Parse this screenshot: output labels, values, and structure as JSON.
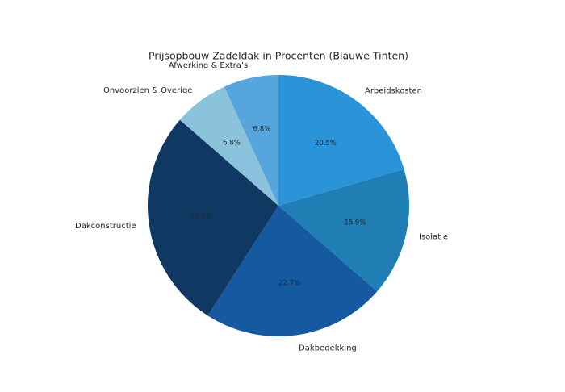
{
  "chart_data": {
    "type": "pie",
    "title": "Prijsopbouw Zadeldak in Procenten (Blauwe Tinten)",
    "categories": [
      "Arbeidskosten",
      "Isolatie",
      "Dakbedekking",
      "Dakconstructie",
      "Onvoorzien & Overige",
      "Afwerking & Extra’s"
    ],
    "values": [
      20.5,
      15.9,
      22.7,
      27.3,
      6.8,
      6.8
    ],
    "value_labels": [
      "20.5%",
      "15.9%",
      "22.7%",
      "27.3%",
      "6.8%",
      "6.8%"
    ],
    "colors": [
      "#2b93d8",
      "#1f7fb4",
      "#1559a0",
      "#0f3862",
      "#8bc2dc",
      "#56a5dc"
    ]
  }
}
